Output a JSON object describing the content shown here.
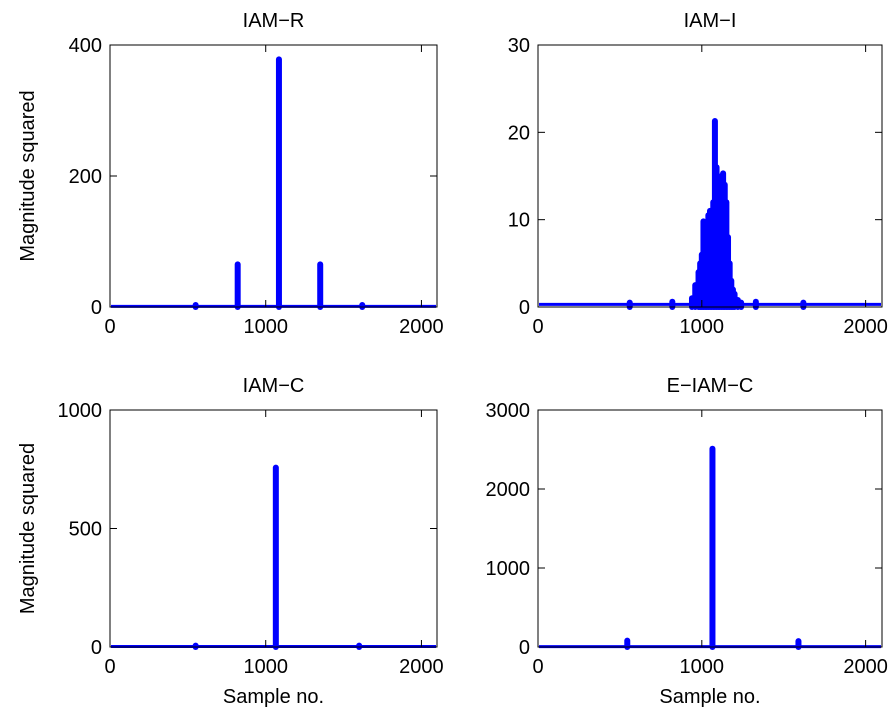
{
  "figure": {
    "line_color": "#0000ff",
    "axis_color": "#000000",
    "background": "#ffffff"
  },
  "chart_data": [
    {
      "type": "line",
      "title": "IAM−R",
      "xlabel": "",
      "ylabel": "Magnitude squared",
      "xlim": [
        0,
        2100
      ],
      "ylim": [
        0,
        400
      ],
      "xticks": [
        0,
        1000,
        2000
      ],
      "yticks": [
        0,
        200,
        400
      ],
      "xtick_labels": [
        "0",
        "1000",
        "2000"
      ],
      "ytick_labels": [
        "0",
        "200",
        "400"
      ],
      "baseline": 1,
      "series": [
        {
          "x": [
            550,
            820,
            1085,
            1350,
            1620
          ],
          "values": [
            3,
            65,
            378,
            65,
            3
          ]
        }
      ]
    },
    {
      "type": "line",
      "title": "IAM−I",
      "xlabel": "",
      "ylabel": "",
      "xlim": [
        0,
        2100
      ],
      "ylim": [
        0,
        30
      ],
      "xticks": [
        0,
        1000,
        2000
      ],
      "yticks": [
        0,
        10,
        20,
        30
      ],
      "xtick_labels": [
        "0",
        "1000",
        "2000"
      ],
      "ytick_labels": [
        "0",
        "10",
        "20",
        "30"
      ],
      "baseline": 0.3,
      "series": [
        {
          "x": [
            560,
            820,
            940,
            960,
            980,
            990,
            1000,
            1010,
            1020,
            1030,
            1040,
            1050,
            1060,
            1070,
            1080,
            1090,
            1100,
            1110,
            1120,
            1130,
            1140,
            1150,
            1160,
            1170,
            1180,
            1190,
            1200,
            1220,
            1240,
            1330,
            1620
          ],
          "values": [
            0.5,
            0.6,
            1,
            2.5,
            4,
            5,
            6,
            9.8,
            7,
            8,
            10.5,
            11,
            9,
            12,
            21.3,
            16,
            11,
            10.5,
            15,
            15.3,
            14,
            12,
            8,
            5,
            3,
            2,
            1.5,
            0.8,
            0.5,
            0.6,
            0.5
          ]
        }
      ]
    },
    {
      "type": "line",
      "title": "IAM−C",
      "xlabel": "Sample no.",
      "ylabel": "Magnitude squared",
      "xlim": [
        0,
        2100
      ],
      "ylim": [
        0,
        1000
      ],
      "xticks": [
        0,
        1000,
        2000
      ],
      "yticks": [
        0,
        500,
        1000
      ],
      "xtick_labels": [
        "0",
        "1000",
        "2000"
      ],
      "ytick_labels": [
        "0",
        "500",
        "1000"
      ],
      "baseline": 2,
      "series": [
        {
          "x": [
            550,
            1065,
            1600
          ],
          "values": [
            6,
            757,
            6
          ]
        }
      ]
    },
    {
      "type": "line",
      "title": "E−IAM−C",
      "xlabel": "Sample no.",
      "ylabel": "",
      "xlim": [
        0,
        2100
      ],
      "ylim": [
        0,
        3000
      ],
      "xticks": [
        0,
        1000,
        2000
      ],
      "yticks": [
        0,
        1000,
        2000,
        3000
      ],
      "xtick_labels": [
        "0",
        "1000",
        "2000"
      ],
      "ytick_labels": [
        "0",
        "1000",
        "2000",
        "3000"
      ],
      "baseline": 5,
      "series": [
        {
          "x": [
            545,
            1065,
            1590
          ],
          "values": [
            80,
            2510,
            75
          ]
        }
      ]
    }
  ]
}
